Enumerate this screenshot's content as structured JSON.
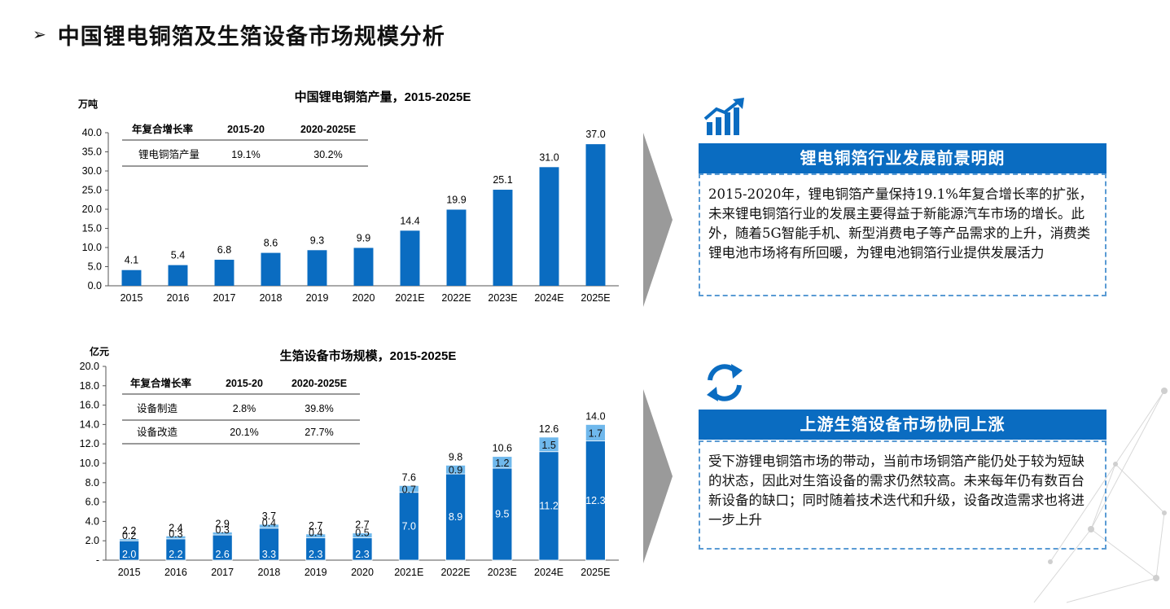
{
  "page": {
    "title": "中国锂电铜箔及生箔设备市场规模分析"
  },
  "chart_data": [
    {
      "type": "bar",
      "title": "中国锂电铜箔产量，2015-2025E",
      "ylabel": "万吨",
      "xlabel": "",
      "ylim": [
        0,
        40
      ],
      "yticks": [
        "0.0",
        "5.0",
        "10.0",
        "15.0",
        "20.0",
        "25.0",
        "30.0",
        "35.0",
        "40.0"
      ],
      "categories": [
        "2015",
        "2016",
        "2017",
        "2018",
        "2019",
        "2020",
        "2021E",
        "2022E",
        "2023E",
        "2024E",
        "2025E"
      ],
      "values": [
        4.1,
        5.4,
        6.8,
        8.6,
        9.3,
        9.9,
        14.4,
        19.9,
        25.1,
        31.0,
        37.0
      ],
      "value_labels": [
        "4.1",
        "5.4",
        "6.8",
        "8.6",
        "9.3",
        "9.9",
        "14.4",
        "19.9",
        "25.1",
        "31.0",
        "37.0"
      ],
      "color": "#0a6cc1",
      "grid": false,
      "cagr_table": {
        "header": [
          "年复合增长率",
          "2015-20",
          "2020-2025E"
        ],
        "rows": [
          [
            "锂电铜箔产量",
            "19.1%",
            "30.2%"
          ]
        ]
      }
    },
    {
      "type": "bar",
      "stacked": true,
      "title": "生箔设备市场规模，2015-2025E",
      "ylabel": "亿元",
      "xlabel": "",
      "ylim": [
        0,
        20
      ],
      "yticks": [
        "-",
        "2.0",
        "4.0",
        "6.0",
        "8.0",
        "10.0",
        "12.0",
        "14.0",
        "16.0",
        "18.0",
        "20.0"
      ],
      "categories": [
        "2015",
        "2016",
        "2017",
        "2018",
        "2019",
        "2020",
        "2021E",
        "2022E",
        "2023E",
        "2024E",
        "2025E"
      ],
      "series": [
        {
          "values": [
            2.0,
            2.2,
            2.6,
            3.3,
            2.3,
            2.3,
            7.0,
            8.9,
            9.5,
            11.2,
            12.3
          ],
          "labels": [
            "2.0",
            "2.2",
            "2.6",
            "3.3",
            "2.3",
            "2.3",
            "7.0",
            "8.9",
            "9.5",
            "11.2",
            "12.3"
          ],
          "color": "#0a6cc1"
        },
        {
          "values": [
            0.2,
            0.3,
            0.3,
            0.4,
            0.4,
            0.5,
            0.7,
            0.9,
            1.2,
            1.5,
            1.7
          ],
          "labels": [
            "0.2",
            "0.3",
            "0.3",
            "0.4",
            "0.4",
            "0.5",
            "0.7",
            "0.9",
            "1.2",
            "1.5",
            "1.7"
          ],
          "color": "#6fb8ec"
        }
      ],
      "totals": [
        2.2,
        2.4,
        2.9,
        3.7,
        2.7,
        2.7,
        7.6,
        9.8,
        10.6,
        12.6,
        14.0
      ],
      "total_labels": [
        "2.2",
        "2.4",
        "2.9",
        "3.7",
        "2.7",
        "2.7",
        "7.6",
        "9.8",
        "10.6",
        "12.6",
        "14.0"
      ],
      "grid": false,
      "cagr_table": {
        "header": [
          "年复合增长率",
          "2015-20",
          "2020-2025E"
        ],
        "rows": [
          [
            "设备制造",
            "2.8%",
            "39.8%"
          ],
          [
            "设备改造",
            "20.1%",
            "27.7%"
          ]
        ]
      }
    }
  ],
  "panels": [
    {
      "icon": "growth-chart-icon",
      "heading": "锂电铜箔行业发展前景明朗",
      "body": "2015-2020年，锂电铜箔产量保持19.1%年复合增长率的扩张，未来锂电铜箔行业的发展主要得益于新能源汽车市场的增长。此外，随着5G智能手机、新型消费电子等产品需求的上升，消费类锂电池市场将有所回暖，为锂电池铜箔行业提供发展活力"
    },
    {
      "icon": "refresh-cycle-icon",
      "heading": "上游生箔设备市场协同上涨",
      "body": "受下游锂电铜箔市场的带动，当前市场铜箔产能仍处于较为短缺的状态，因此对生箔设备的需求仍然较高。未来每年仍有数百台新设备的缺口；同时随着技术迭代和升级，设备改造需求也将进一步上升"
    }
  ],
  "colors": {
    "accent": "#0a6cc1",
    "light": "#6fb8ec",
    "arrow": "#9a9a9a"
  }
}
